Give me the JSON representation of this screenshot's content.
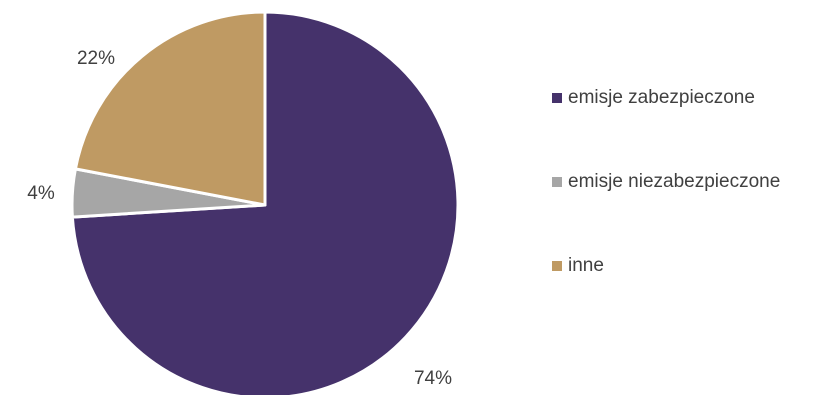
{
  "chart_data": {
    "type": "pie",
    "categories": [
      "emisje zabezpieczone",
      "emisje niezabezpieczone",
      "inne"
    ],
    "values": [
      74,
      4,
      22
    ],
    "labels": [
      "74%",
      "4%",
      "22%"
    ],
    "colors": [
      "#45326b",
      "#a6a6a6",
      "#bf9a63"
    ],
    "legend_position": "right"
  }
}
